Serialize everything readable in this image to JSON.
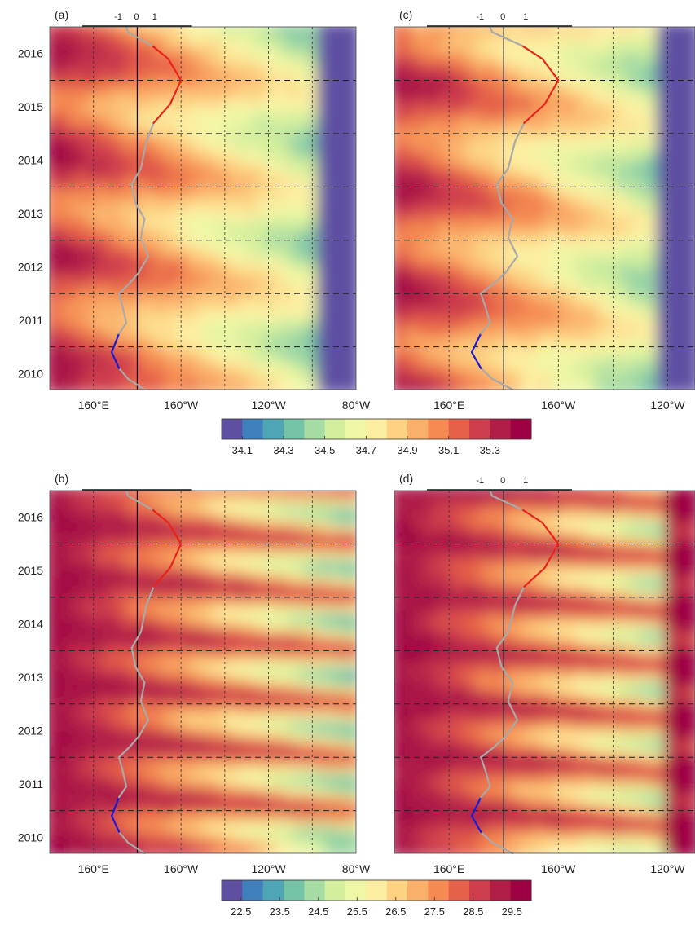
{
  "colors": {
    "salinity_scale": [
      "#5e4fa2",
      "#3f7fbc",
      "#4ea6b4",
      "#75c3a6",
      "#a6dba4",
      "#d3ee9c",
      "#eef7a6",
      "#fdefa2",
      "#fdd383",
      "#fbb06a",
      "#f58b52",
      "#e5614a",
      "#cf3e4d",
      "#b01e48",
      "#9e0142"
    ],
    "sst_scale": [
      "#5e4fa2",
      "#3f7fbc",
      "#4ea6b4",
      "#75c3a6",
      "#a6dba4",
      "#d3ee9c",
      "#eef7a6",
      "#fdefa2",
      "#fdd383",
      "#fbb06a",
      "#f58b52",
      "#e5614a",
      "#cf3e4d",
      "#b01e48",
      "#9e0142"
    ],
    "index_positive": "#e8231a",
    "index_negative": "#1b1bd6",
    "index_neutral": "#a9a9a9"
  },
  "chart_data": [
    {
      "panel_label": "(a)",
      "type": "heatmap",
      "x_ticks": [
        "160°E",
        "160°W",
        "120°W",
        "80°W"
      ],
      "y_ticks": [
        "2010",
        "2011",
        "2012",
        "2013",
        "2014",
        "2015",
        "2016"
      ],
      "top_axis_ticks": [
        "-1",
        "0",
        "1"
      ],
      "xlim": [
        140,
        280
      ],
      "ylim": [
        2009.7,
        2016.5
      ],
      "grid": true
    },
    {
      "panel_label": "(b)",
      "type": "heatmap",
      "x_ticks": [
        "160°E",
        "160°W",
        "120°W",
        "80°W"
      ],
      "y_ticks": [
        "2010",
        "2011",
        "2012",
        "2013",
        "2014",
        "2015",
        "2016"
      ],
      "xlim": [
        140,
        280
      ],
      "ylim": [
        2009.7,
        2016.5
      ],
      "grid": true
    },
    {
      "panel_label": "(c)",
      "type": "heatmap",
      "x_ticks": [
        "160°E",
        "160°W",
        "120°W"
      ],
      "top_axis_ticks": [
        "-1",
        "0",
        "1"
      ],
      "xlim": [
        140,
        250
      ],
      "ylim": [
        2009.7,
        2016.5
      ],
      "grid": true
    },
    {
      "panel_label": "(d)",
      "type": "heatmap",
      "x_ticks": [
        "160°E",
        "160°W",
        "120°W"
      ],
      "top_axis_ticks": [
        "-1",
        "0",
        "1"
      ],
      "xlim": [
        140,
        250
      ],
      "ylim": [
        2009.7,
        2016.5
      ],
      "grid": true
    }
  ],
  "colorbars": [
    {
      "labels": [
        "34.1",
        "34.3",
        "34.5",
        "34.7",
        "34.9",
        "35.1",
        "35.3"
      ],
      "range": [
        34.0,
        35.5
      ]
    },
    {
      "labels": [
        "22.5",
        "23.5",
        "24.5",
        "25.5",
        "26.5",
        "27.5",
        "28.5",
        "29.5"
      ],
      "range": [
        22.0,
        30.0
      ]
    }
  ]
}
